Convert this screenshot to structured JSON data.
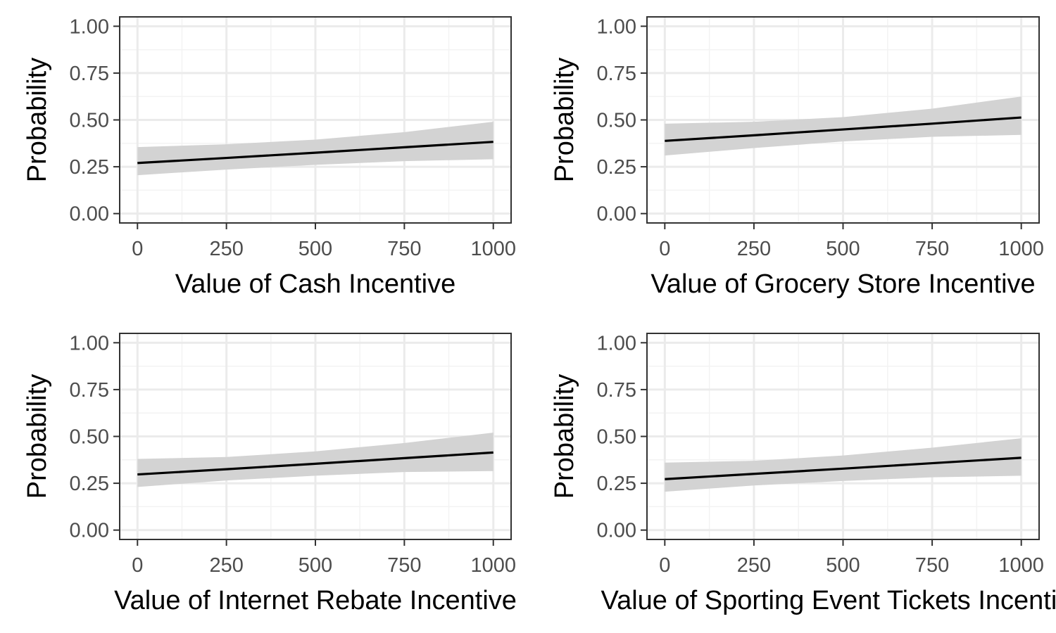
{
  "chart_data": [
    {
      "type": "line",
      "title": "",
      "xlabel": "Value of Cash Incentive",
      "ylabel": "Probability",
      "xlim": [
        -50,
        1050
      ],
      "ylim": [
        -0.05,
        1.05
      ],
      "x_ticks": [
        0,
        250,
        500,
        750,
        1000
      ],
      "x_tick_labels": [
        "0",
        "250",
        "500",
        "750",
        "1000"
      ],
      "y_ticks": [
        0,
        0.25,
        0.5,
        0.75,
        1.0
      ],
      "y_tick_labels": [
        "0.00",
        "0.25",
        "0.50",
        "0.75",
        "1.00"
      ],
      "grid": true,
      "series": [
        {
          "x": [
            0,
            250,
            500,
            750,
            1000
          ],
          "y": [
            0.27,
            0.297,
            0.325,
            0.354,
            0.383
          ],
          "lower": [
            0.205,
            0.235,
            0.26,
            0.28,
            0.29
          ],
          "upper": [
            0.355,
            0.37,
            0.395,
            0.435,
            0.49
          ]
        }
      ]
    },
    {
      "type": "line",
      "title": "",
      "xlabel": "Value of Grocery Store Incentive",
      "ylabel": "Probability",
      "xlim": [
        -50,
        1050
      ],
      "ylim": [
        -0.05,
        1.05
      ],
      "x_ticks": [
        0,
        250,
        500,
        750,
        1000
      ],
      "x_tick_labels": [
        "0",
        "250",
        "500",
        "750",
        "1000"
      ],
      "y_ticks": [
        0,
        0.25,
        0.5,
        0.75,
        1.0
      ],
      "y_tick_labels": [
        "0.00",
        "0.25",
        "0.50",
        "0.75",
        "1.00"
      ],
      "grid": true,
      "series": [
        {
          "x": [
            0,
            250,
            500,
            750,
            1000
          ],
          "y": [
            0.388,
            0.418,
            0.449,
            0.48,
            0.513
          ],
          "lower": [
            0.31,
            0.35,
            0.385,
            0.41,
            0.42
          ],
          "upper": [
            0.48,
            0.49,
            0.515,
            0.56,
            0.625
          ]
        }
      ]
    },
    {
      "type": "line",
      "title": "",
      "xlabel": "Value of Internet Rebate Incentive",
      "ylabel": "Probability",
      "xlim": [
        -50,
        1050
      ],
      "ylim": [
        -0.05,
        1.05
      ],
      "x_ticks": [
        0,
        250,
        500,
        750,
        1000
      ],
      "x_tick_labels": [
        "0",
        "250",
        "500",
        "750",
        "1000"
      ],
      "y_ticks": [
        0,
        0.25,
        0.5,
        0.75,
        1.0
      ],
      "y_tick_labels": [
        "0.00",
        "0.25",
        "0.50",
        "0.75",
        "1.00"
      ],
      "grid": true,
      "series": [
        {
          "x": [
            0,
            250,
            500,
            750,
            1000
          ],
          "y": [
            0.297,
            0.325,
            0.354,
            0.384,
            0.414
          ],
          "lower": [
            0.23,
            0.265,
            0.29,
            0.31,
            0.315
          ],
          "upper": [
            0.38,
            0.39,
            0.42,
            0.465,
            0.52
          ]
        }
      ]
    },
    {
      "type": "line",
      "title": "",
      "xlabel": "Value of Sporting Event Tickets Incentive",
      "ylabel": "Probability",
      "xlim": [
        -50,
        1050
      ],
      "ylim": [
        -0.05,
        1.05
      ],
      "x_ticks": [
        0,
        250,
        500,
        750,
        1000
      ],
      "x_tick_labels": [
        "0",
        "250",
        "500",
        "750",
        "1000"
      ],
      "y_ticks": [
        0,
        0.25,
        0.5,
        0.75,
        1.0
      ],
      "y_tick_labels": [
        "0.00",
        "0.25",
        "0.50",
        "0.75",
        "1.00"
      ],
      "grid": true,
      "series": [
        {
          "x": [
            0,
            250,
            500,
            750,
            1000
          ],
          "y": [
            0.272,
            0.3,
            0.328,
            0.357,
            0.386
          ],
          "lower": [
            0.205,
            0.238,
            0.262,
            0.282,
            0.29
          ],
          "upper": [
            0.36,
            0.37,
            0.398,
            0.44,
            0.49
          ]
        }
      ]
    }
  ],
  "colors": {
    "line": "#000000",
    "ribbon": "#d3d3d3",
    "grid_major": "#ebebeb",
    "grid_minor": "#f3f3f3",
    "panel_border": "#333333",
    "tick": "#333333"
  }
}
